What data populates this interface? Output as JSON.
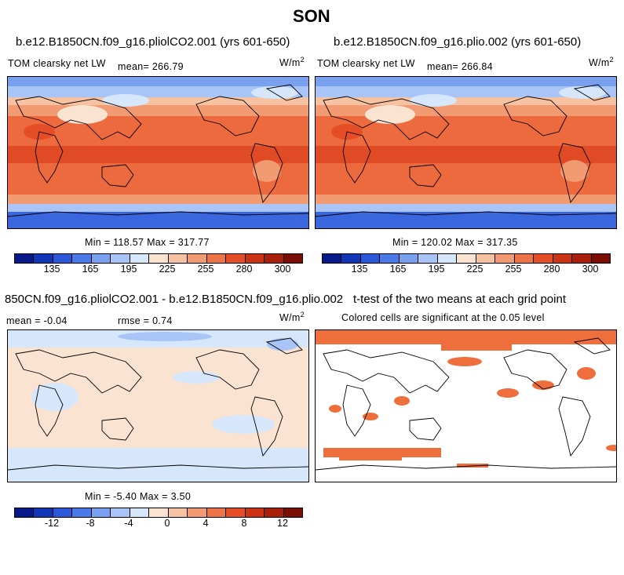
{
  "figure": {
    "title": "SON"
  },
  "panels": [
    {
      "title": "b.e12.B1850CN.f09_g16.pliolCO2.001 (yrs 601-650)",
      "variable": "TOM clearsky net LW",
      "stat": "mean= 266.79",
      "units": "W/m",
      "units_exp": "2",
      "minmax": "Min = 118.57 Max = 317.77"
    },
    {
      "title": "b.e12.B1850CN.f09_g16.plio.002 (yrs 601-650)",
      "variable": "TOM clearsky net LW",
      "stat": "mean= 266.84",
      "units": "W/m",
      "units_exp": "2",
      "minmax": "Min = 120.02 Max = 317.35"
    },
    {
      "title": "850CN.f09_g16.pliolCO2.001 - b.e12.B1850CN.f09_g16.plio.002",
      "variable": "mean =   -0.04",
      "stat": "rmse =    0.74",
      "units": "W/m",
      "units_exp": "2",
      "minmax": "Min =  -5.40 Max =    3.50"
    },
    {
      "title": "t-test of the two means at each grid point",
      "variable": "Colored cells are significant at the 0.05 level"
    }
  ],
  "chart_data": [
    {
      "type": "heatmap",
      "title": "b.e12.B1850CN.f09_g16.pliolCO2.001 (yrs 601-650)",
      "variable": "TOM clearsky net LW",
      "mean": 266.79,
      "min": 118.57,
      "max": 317.77,
      "units": "W/m2",
      "colorbar": {
        "levels": [
          135,
          165,
          195,
          225,
          255,
          280,
          300
        ],
        "tick_labels": [
          "135",
          "165",
          "195",
          "225",
          "255",
          "280",
          "300"
        ],
        "colors": [
          "#08198a",
          "#1236b8",
          "#2a58d8",
          "#4a7ae8",
          "#7aa0f0",
          "#a9c4f6",
          "#d6e6fb",
          "#fbe3d2",
          "#f7c2a2",
          "#f29b72",
          "#ec7448",
          "#e44d26",
          "#cc3214",
          "#a91f0c",
          "#7a0d04"
        ]
      }
    },
    {
      "type": "heatmap",
      "title": "b.e12.B1850CN.f09_g16.plio.002 (yrs 601-650)",
      "variable": "TOM clearsky net LW",
      "mean": 266.84,
      "min": 120.02,
      "max": 317.35,
      "units": "W/m2",
      "colorbar": {
        "levels": [
          135,
          165,
          195,
          225,
          255,
          280,
          300
        ],
        "tick_labels": [
          "135",
          "165",
          "195",
          "225",
          "255",
          "280",
          "300"
        ],
        "colors": [
          "#08198a",
          "#1236b8",
          "#2a58d8",
          "#4a7ae8",
          "#7aa0f0",
          "#a9c4f6",
          "#d6e6fb",
          "#fbe3d2",
          "#f7c2a2",
          "#f29b72",
          "#ec7448",
          "#e44d26",
          "#cc3214",
          "#a91f0c",
          "#7a0d04"
        ]
      }
    },
    {
      "type": "heatmap",
      "title": "850CN.f09_g16.pliolCO2.001 - b.e12.B1850CN.f09_g16.plio.002",
      "mean": -0.04,
      "rmse": 0.74,
      "min": -5.4,
      "max": 3.5,
      "units": "W/m2",
      "colorbar": {
        "levels": [
          -12,
          -8,
          -4,
          0,
          4,
          8,
          12
        ],
        "tick_labels": [
          "-12",
          "-8",
          "-4",
          "0",
          "4",
          "8",
          "12"
        ],
        "colors": [
          "#08198a",
          "#1236b8",
          "#2a58d8",
          "#4a7ae8",
          "#7aa0f0",
          "#a9c4f6",
          "#d6e6fb",
          "#fbe3d2",
          "#f7c2a2",
          "#f29b72",
          "#ec7448",
          "#e44d26",
          "#cc3214",
          "#a91f0c",
          "#7a0d04"
        ]
      }
    },
    {
      "type": "heatmap",
      "title": "t-test of the two means at each grid point",
      "note": "Colored cells are significant at the 0.05 level",
      "significant_color": "#ee6e3c"
    }
  ]
}
